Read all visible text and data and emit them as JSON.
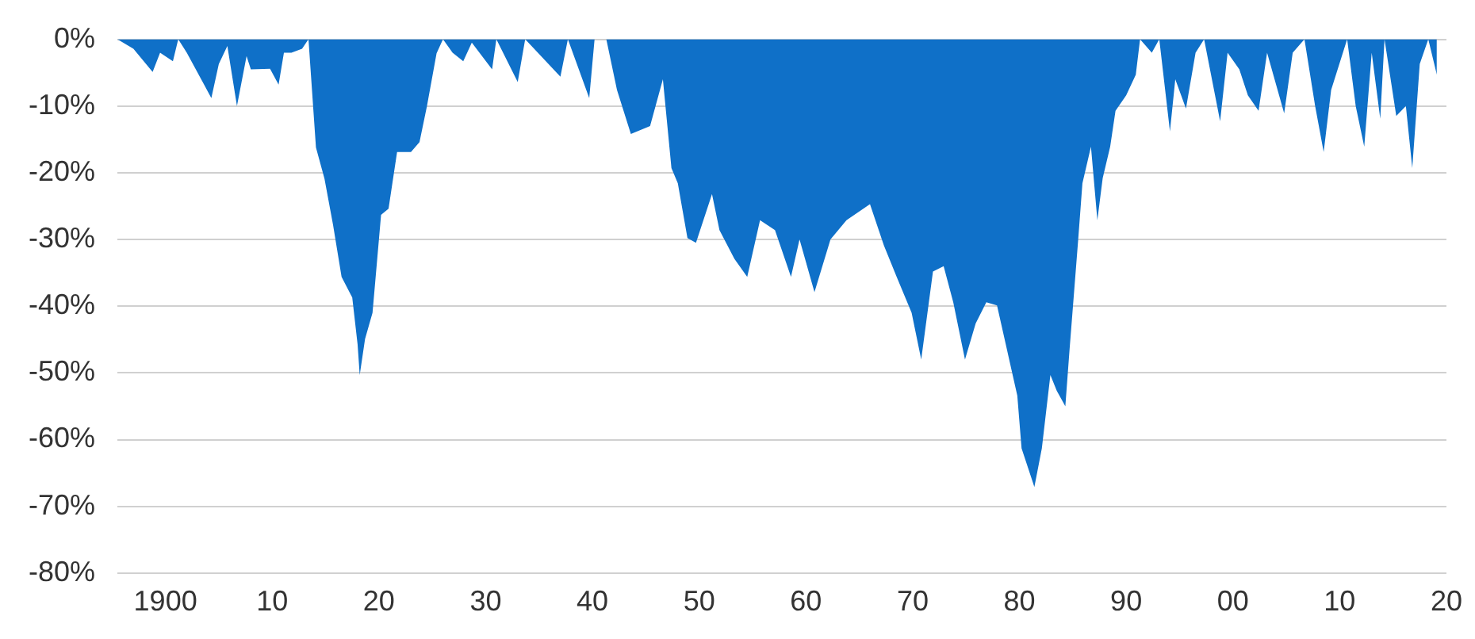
{
  "chart_data": {
    "type": "area",
    "grid": "y",
    "xlim": [
      1895.5,
      2020
    ],
    "ylim": [
      -80,
      0
    ],
    "xticks": [
      {
        "value": 1900,
        "label": "1900"
      },
      {
        "value": 1910,
        "label": "10"
      },
      {
        "value": 1920,
        "label": "20"
      },
      {
        "value": 1930,
        "label": "30"
      },
      {
        "value": 1940,
        "label": "40"
      },
      {
        "value": 1950,
        "label": "50"
      },
      {
        "value": 1960,
        "label": "60"
      },
      {
        "value": 1970,
        "label": "70"
      },
      {
        "value": 1980,
        "label": "80"
      },
      {
        "value": 1990,
        "label": "90"
      },
      {
        "value": 2000,
        "label": "00"
      },
      {
        "value": 2010,
        "label": "10"
      },
      {
        "value": 2020,
        "label": "20"
      }
    ],
    "yticks": [
      {
        "value": 0,
        "label": "0%"
      },
      {
        "value": -10,
        "label": "-10%"
      },
      {
        "value": -20,
        "label": "-20%"
      },
      {
        "value": -30,
        "label": "-30%"
      },
      {
        "value": -40,
        "label": "-40%"
      },
      {
        "value": -50,
        "label": "-50%"
      },
      {
        "value": -60,
        "label": "-60%"
      },
      {
        "value": -70,
        "label": "-70%"
      },
      {
        "value": -80,
        "label": "-80%"
      }
    ],
    "series": [
      {
        "color": "#0f70c8",
        "x": [
          1895.5,
          1897,
          1898.8,
          1899.5,
          1900.7,
          1901.2,
          1902,
          1904.3,
          1905,
          1905.8,
          1906.7,
          1907.6,
          1908,
          1909.8,
          1910.6,
          1911.1,
          1911.8,
          1912.8,
          1913.4,
          1914.1,
          1914.9,
          1915.7,
          1916.5,
          1917.5,
          1918,
          1918.2,
          1918.7,
          1919.4,
          1920.2,
          1920.9,
          1921.7,
          1923,
          1923.8,
          1924.5,
          1925.4,
          1926,
          1926.9,
          1927.9,
          1928.7,
          1930.6,
          1931,
          1933,
          1933.7,
          1937,
          1937.7,
          1939.7,
          1940.2,
          1941.3,
          1942.3,
          1943.6,
          1945.4,
          1946.6,
          1947.4,
          1948,
          1948.9,
          1949.7,
          1951.2,
          1951.9,
          1953.3,
          1954.5,
          1955.7,
          1957.1,
          1958.6,
          1959.4,
          1960.8,
          1962.3,
          1963.8,
          1966,
          1967.3,
          1968.5,
          1969.9,
          1970.8,
          1971.9,
          1972.9,
          1973.8,
          1974.9,
          1975.9,
          1976.9,
          1977.9,
          1979.8,
          1980.2,
          1981.4,
          1982.1,
          1982.9,
          1983.5,
          1984.3,
          1984.7,
          1985.5,
          1985.9,
          1986.7,
          1987.3,
          1987.8,
          1988.5,
          1989,
          1990,
          1990.9,
          1991.3,
          1992.4,
          1993.1,
          1994.1,
          1994.6,
          1995.6,
          1996.5,
          1997.3,
          1998.8,
          1999.5,
          2000.6,
          2001.4,
          2002.4,
          2003.2,
          2003.9,
          2004.8,
          2005.6,
          2006.7,
          2007.7,
          2008.5,
          2009.2,
          2010.7,
          2011.5,
          2012.3,
          2013,
          2013.8,
          2014.2,
          2015.3,
          2016.2,
          2016.8,
          2017.5,
          2018.3,
          2019.1
        ],
        "values": [
          0,
          -1.4,
          -4.9,
          -2,
          -3.3,
          0,
          -2,
          -8.8,
          -3.7,
          -1,
          -10,
          -2.5,
          -4.5,
          -4.4,
          -6.8,
          -2,
          -2,
          -1.4,
          0,
          -16.2,
          -20.9,
          -27.8,
          -35.6,
          -38.7,
          -45.7,
          -50.3,
          -44.9,
          -41,
          -26.3,
          -25.4,
          -16.9,
          -16.9,
          -15.4,
          -10,
          -2.1,
          0,
          -2,
          -3.3,
          -0.5,
          -4.5,
          0,
          -6.4,
          0,
          -5.6,
          0,
          -8.8,
          0,
          0,
          -7.6,
          -14.2,
          -13,
          -6,
          -19.3,
          -21.6,
          -29.8,
          -30.5,
          -23.2,
          -28.6,
          -32.9,
          -35.6,
          -27.1,
          -28.6,
          -35.6,
          -30,
          -37.9,
          -30,
          -27.1,
          -24.7,
          -30.9,
          -35.6,
          -41,
          -48,
          -34.8,
          -34,
          -39.4,
          -48,
          -42.6,
          -39.4,
          -39.9,
          -53.4,
          -61.3,
          -67.1,
          -61.3,
          -50.3,
          -52.7,
          -55,
          -46.4,
          -30.1,
          -21.6,
          -16.1,
          -27.1,
          -20.8,
          -16.1,
          -10.7,
          -8.4,
          -5.3,
          0,
          -2,
          0,
          -13.8,
          -6,
          -10.4,
          -2,
          0,
          -12.3,
          -2,
          -4.5,
          -8.4,
          -10.7,
          -2,
          -6,
          -11.1,
          -2,
          0,
          -10,
          -16.9,
          -7.6,
          0,
          -10,
          -16.1,
          -2,
          -11.9,
          0,
          -11.5,
          -10,
          -19.3,
          -3.7,
          0,
          -5.3
        ]
      }
    ]
  }
}
